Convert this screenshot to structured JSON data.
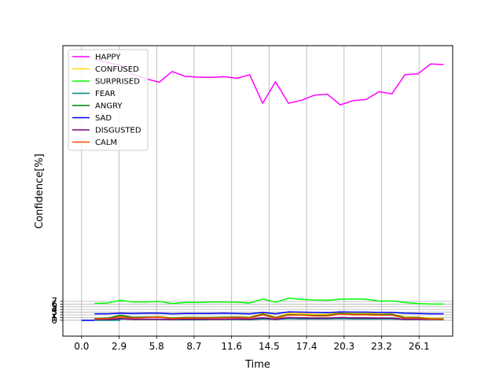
{
  "chart_data": {
    "type": "line",
    "title": "",
    "xlabel": "Time",
    "ylabel": "Confidence[%]",
    "x_ticks": [
      0.0,
      2.9,
      5.8,
      8.7,
      11.6,
      14.5,
      17.4,
      20.3,
      23.2,
      26.1
    ],
    "x_tick_labels": [
      "0.0",
      "2.9",
      "5.8",
      "8.7",
      "11.6",
      "14.5",
      "17.4",
      "20.3",
      "23.2",
      "26.1"
    ],
    "y_ticks": [
      0,
      1,
      2,
      3,
      4,
      5,
      6,
      7
    ],
    "y_tick_labels": [
      "0",
      "1",
      "2",
      "3",
      "4",
      "5",
      "6",
      "7"
    ],
    "xlim": [
      -1.45,
      28.7
    ],
    "ylim": [
      -5.9,
      102
    ],
    "grid": "vertical and horizontal at ticks",
    "legend_position": "upper-left",
    "x": [
      1.0,
      2.0,
      3.0,
      4.0,
      5.0,
      6.0,
      7.0,
      8.0,
      9.0,
      10.0,
      11.0,
      12.0,
      13.0,
      14.0,
      15.0,
      16.0,
      17.0,
      18.0,
      19.0,
      20.0,
      21.0,
      22.0,
      23.0,
      24.0,
      25.0,
      26.0,
      27.0,
      28.0
    ],
    "series": [
      {
        "name": "HAPPY",
        "color": "#ff00ff",
        "values": [
          97.0,
          95.8,
          94.7,
          91.2,
          89.7,
          88.4,
          92.4,
          90.6,
          90.3,
          90.2,
          90.5,
          89.9,
          91.2,
          80.6,
          88.6,
          80.6,
          81.7,
          83.6,
          84.0,
          80.0,
          81.6,
          82.0,
          84.9,
          84.1,
          91.2,
          91.5,
          95.2,
          95.0
        ]
      },
      {
        "name": "CONFUSED",
        "color": "#ffd700",
        "values": [
          0.6,
          0.7,
          1.6,
          1.0,
          1.1,
          1.4,
          0.8,
          1.1,
          1.0,
          1.0,
          1.1,
          1.3,
          1.1,
          2.6,
          1.1,
          2.6,
          2.5,
          2.2,
          2.2,
          2.9,
          2.5,
          2.6,
          2.4,
          2.4,
          1.2,
          1.2,
          0.7,
          0.7
        ]
      },
      {
        "name": "SURPRISED",
        "color": "#00ff00",
        "values": [
          6.2,
          6.4,
          7.4,
          6.8,
          6.8,
          7.0,
          6.2,
          6.6,
          6.6,
          6.8,
          6.8,
          6.7,
          6.4,
          7.9,
          6.7,
          8.2,
          7.8,
          7.5,
          7.4,
          7.8,
          7.9,
          7.8,
          7.1,
          7.2,
          6.6,
          6.2,
          6.0,
          6.0
        ]
      },
      {
        "name": "FEAR",
        "color": "#008080",
        "values": [
          0.2,
          0.2,
          0.5,
          0.3,
          0.3,
          0.3,
          0.2,
          0.2,
          0.2,
          0.3,
          0.3,
          0.3,
          0.2,
          0.5,
          0.3,
          0.6,
          0.5,
          0.5,
          0.5,
          0.6,
          0.5,
          0.5,
          0.5,
          0.5,
          0.3,
          0.3,
          0.2,
          0.2
        ]
      },
      {
        "name": "ANGRY",
        "color": "#008000",
        "values": [
          0.6,
          0.8,
          1.8,
          1.1,
          1.2,
          1.2,
          0.8,
          1.0,
          1.0,
          1.0,
          1.1,
          1.2,
          1.0,
          2.3,
          1.0,
          2.1,
          2.0,
          1.8,
          1.8,
          2.5,
          2.2,
          2.2,
          2.1,
          2.2,
          1.0,
          1.0,
          0.5,
          0.5
        ]
      },
      {
        "name": "SAD",
        "color": "#0000ff",
        "values": [
          2.4,
          2.4,
          2.6,
          2.5,
          2.6,
          2.6,
          2.4,
          2.5,
          2.5,
          2.5,
          2.6,
          2.5,
          2.4,
          2.9,
          2.4,
          3.1,
          3.0,
          2.9,
          2.8,
          3.1,
          3.0,
          3.0,
          2.9,
          2.9,
          2.6,
          2.5,
          2.4,
          2.4
        ]
      },
      {
        "name": "DISGUSTED",
        "color": "#800080",
        "values": [
          0.3,
          0.3,
          0.6,
          0.4,
          0.4,
          0.4,
          0.3,
          0.4,
          0.4,
          0.4,
          0.4,
          0.5,
          0.4,
          0.9,
          0.4,
          1.0,
          0.9,
          0.8,
          0.8,
          1.0,
          0.9,
          0.9,
          0.8,
          0.8,
          0.4,
          0.4,
          0.3,
          0.3
        ]
      },
      {
        "name": "CALM",
        "color": "#ff4500",
        "values": [
          0.5,
          0.6,
          1.2,
          0.8,
          1.0,
          1.1,
          0.6,
          0.8,
          0.8,
          0.8,
          0.9,
          1.0,
          0.8,
          2.0,
          0.8,
          1.9,
          1.9,
          1.6,
          1.6,
          2.3,
          2.0,
          2.0,
          1.9,
          1.9,
          0.8,
          0.8,
          0.4,
          0.4
        ]
      }
    ],
    "extra_segments": [
      {
        "color": "#008080",
        "x": [
          0.0,
          3.0
        ],
        "values": [
          0.0,
          0.0
        ]
      },
      {
        "color": "#0000ff",
        "x": [
          0.0,
          1.0
        ],
        "values": [
          0.0,
          0.0
        ]
      }
    ]
  }
}
